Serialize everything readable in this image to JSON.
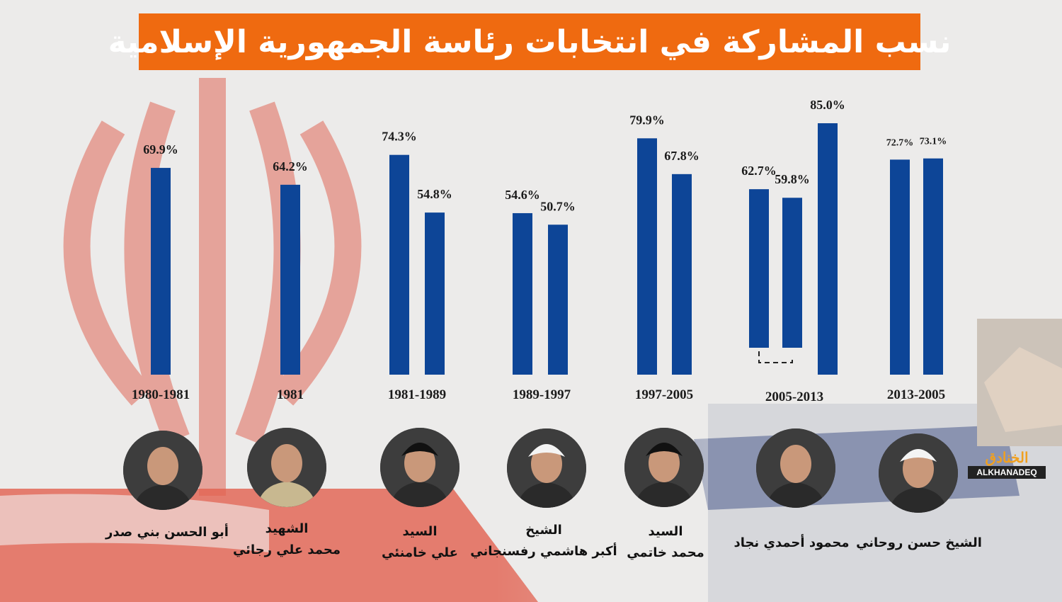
{
  "title": "نسب المشاركة في  انتخابات رئاسة الجمهورية الإسلامية",
  "logo": {
    "arabic": "الخنادق",
    "latin": "ALKHANADEQ"
  },
  "colors": {
    "bar": "#0d4597",
    "title_bg": "#ef6a10",
    "title_text": "#ffffff"
  },
  "chart_data": {
    "type": "bar",
    "unit": "%",
    "ylim": [
      0,
      100
    ],
    "grid": false,
    "groups": [
      {
        "period": "1980-1981",
        "values": [
          69.9
        ],
        "labels": [
          "69.9%"
        ],
        "person_title": "",
        "person_name": "أبو الحسن بني صدر",
        "icon": "portrait-banisadr"
      },
      {
        "period": "1981",
        "values": [
          64.2
        ],
        "labels": [
          "64.2%"
        ],
        "person_title": "الشهيد",
        "person_name": "محمد علي رجائي",
        "icon": "portrait-rajai"
      },
      {
        "period": "1981-1989",
        "values": [
          74.3,
          54.8
        ],
        "labels": [
          "74.3%",
          "54.8%"
        ],
        "person_title": "السيد",
        "person_name": "علي خامنئي",
        "icon": "portrait-khamenei"
      },
      {
        "period": "1989-1997",
        "values": [
          54.6,
          50.7
        ],
        "labels": [
          "54.6%",
          "50.7%"
        ],
        "person_title": "الشيخ",
        "person_name": "أكبر هاشمي رفسنجاني",
        "icon": "portrait-rafsanjani"
      },
      {
        "period": "1997-2005",
        "values": [
          79.9,
          67.8
        ],
        "labels": [
          "79.9%",
          "67.8%"
        ],
        "person_title": "السيد",
        "person_name": "محمد خاتمي",
        "icon": "portrait-khatami"
      },
      {
        "period": "2005-2013",
        "values": [
          62.7,
          59.8,
          85.0
        ],
        "labels": [
          "62.7%",
          "59.8%",
          "85.0%"
        ],
        "person_title": "",
        "person_name": "محمود أحمدي نجاد",
        "icon": "portrait-ahmadinejad"
      },
      {
        "period": "2013-2005",
        "values": [
          72.7,
          73.1
        ],
        "labels": [
          "72.7%",
          "73.1%"
        ],
        "person_title": "",
        "person_name": "الشيخ حسن روحاني",
        "icon": "portrait-rouhani"
      }
    ]
  }
}
